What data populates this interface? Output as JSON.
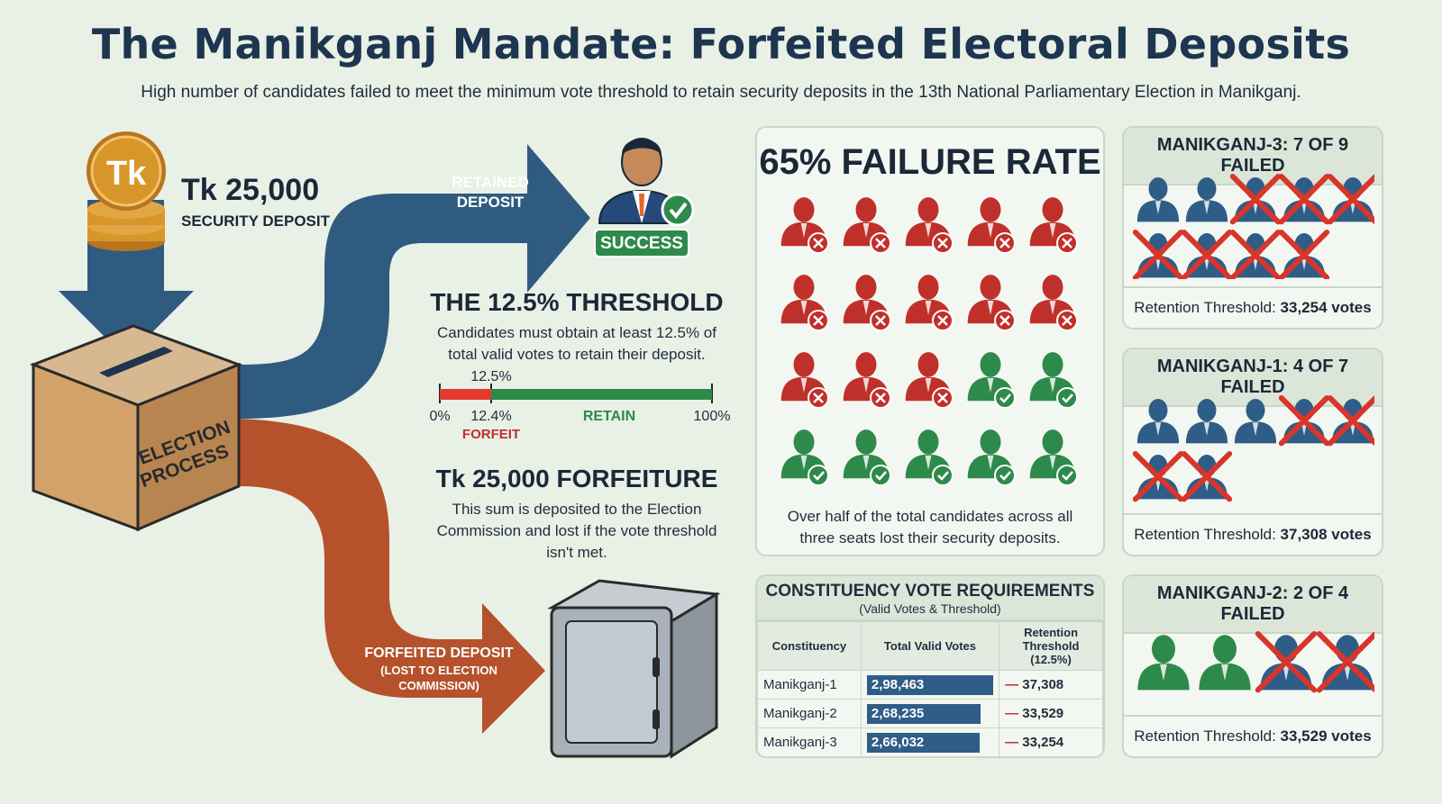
{
  "header": {
    "title": "The Manikganj Mandate: Forfeited Electoral Deposits",
    "subtitle": "High number of candidates failed to meet the minimum vote threshold to retain security deposits in the 13th National Parliamentary Election in Manikganj."
  },
  "flow": {
    "coin_symbol": "Tk",
    "deposit_amount": "Tk 25,000",
    "deposit_label": "SECURITY DEPOSIT",
    "box_label_1": "ELECTION",
    "box_label_2": "PROCESS",
    "retained_1": "RETAINED",
    "retained_2": "DEPOSIT",
    "success_label": "SUCCESS",
    "forfeited_1": "FORFEITED DEPOSIT",
    "forfeited_2": "(LOST TO ELECTION",
    "forfeited_3": "COMMISSION)"
  },
  "threshold": {
    "heading": "THE 12.5% THRESHOLD",
    "text_1": "Candidates must obtain at least 12.5% of",
    "text_2": "total valid votes to retain their deposit.",
    "marker_label": "12.5%",
    "marker_fraction": 0.125,
    "axis_start": "0%",
    "axis_low": "12.4%",
    "axis_end": "100%",
    "retain_label": "RETAIN",
    "forfeit_label": "FORFEIT"
  },
  "forfeiture": {
    "heading": "Tk 25,000 FORFEITURE",
    "text_1": "This sum is deposited to the Election",
    "text_2": "Commission and lost if the vote threshold",
    "text_3": "isn't met."
  },
  "failure": {
    "heading": "65% FAILURE RATE",
    "failed_count": 13,
    "passed_count": 7,
    "caption_1": "Over half of the total candidates across all",
    "caption_2": "three seats lost their security deposits."
  },
  "requirements": {
    "title": "CONSTITUENCY VOTE REQUIREMENTS",
    "subtitle": "(Valid Votes & Threshold)",
    "col_constituency": "Constituency",
    "col_votes": "Total Valid Votes",
    "col_threshold_1": "Retention",
    "col_threshold_2": "Threshold (12.5%)",
    "rows": [
      {
        "name": "Manikganj-1",
        "votes": "2,98,463",
        "votes_value": 298463,
        "threshold": "37,308"
      },
      {
        "name": "Manikganj-2",
        "votes": "2,68,235",
        "votes_value": 268235,
        "threshold": "33,529"
      },
      {
        "name": "Manikganj-3",
        "votes": "2,66,032",
        "votes_value": 266032,
        "threshold": "33,254"
      }
    ]
  },
  "constituencies": [
    {
      "title": "MANIKGANJ-3: 7 OF 9 FAILED",
      "total": 9,
      "failed": 7,
      "passed_color": "#2e5d87",
      "footer_label": "Retention Threshold:",
      "footer_value": "33,254 votes"
    },
    {
      "title": "MANIKGANJ-1: 4 OF 7 FAILED",
      "total": 7,
      "failed": 4,
      "passed_color": "#2e5d87",
      "footer_label": "Retention Threshold:",
      "footer_value": "37,308 votes"
    },
    {
      "title": "MANIKGANJ-2: 2 OF 4 FAILED",
      "total": 4,
      "failed": 2,
      "passed_color": "#2e8a4a",
      "footer_label": "Retention Threshold:",
      "footer_value": "33,529 votes"
    }
  ],
  "colors": {
    "navy": "#1e3550",
    "blue_arrow": "#2f5b80",
    "orange_arrow": "#b5522c",
    "fail_red": "#c0302a",
    "pass_green": "#2e8a4a",
    "coin_gold": "#d8962a"
  }
}
